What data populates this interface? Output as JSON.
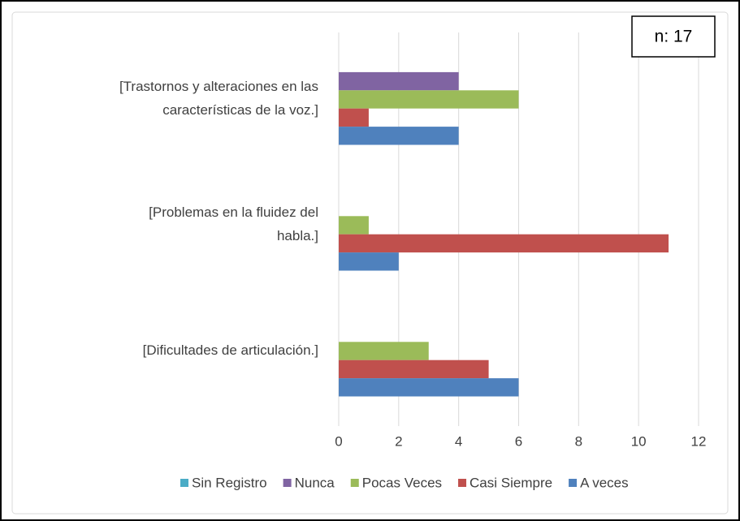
{
  "chart_data": {
    "type": "hbar",
    "annotation": "n: 17",
    "categories": [
      "[Trastornos y alteraciones en las características de la voz.]",
      "[Problemas en la fluidez del habla.]",
      "[Dificultades de articulación.]"
    ],
    "series": [
      {
        "name": "Sin Registro",
        "color": "#4bacc6",
        "values": [
          0,
          0,
          0
        ]
      },
      {
        "name": "Nunca",
        "color": "#8064a2",
        "values": [
          4,
          0,
          0
        ]
      },
      {
        "name": "Pocas Veces",
        "color": "#9bbb59",
        "values": [
          6,
          1,
          3
        ]
      },
      {
        "name": "Casi Siempre",
        "color": "#c0504d",
        "values": [
          1,
          11,
          5
        ]
      },
      {
        "name": "A veces",
        "color": "#4f81bd",
        "values": [
          4,
          2,
          6
        ]
      }
    ],
    "xlim": [
      0,
      12
    ],
    "xticks": [
      0,
      2,
      4,
      6,
      8,
      10,
      12
    ],
    "grid": true,
    "legend": "bottom"
  }
}
